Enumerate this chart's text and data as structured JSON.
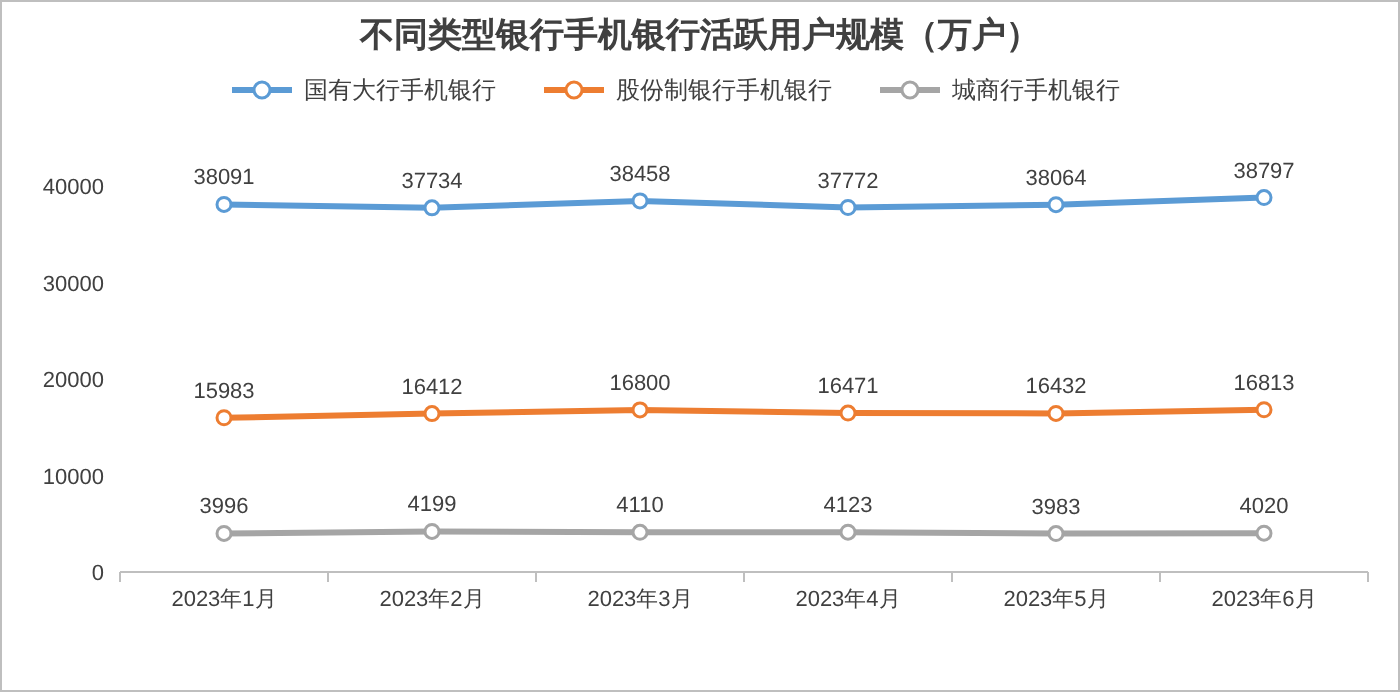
{
  "chart_data": {
    "type": "line",
    "title": "不同类型银行手机银行活跃用户规模（万户）",
    "categories": [
      "2023年1月",
      "2023年2月",
      "2023年3月",
      "2023年4月",
      "2023年5月",
      "2023年6月"
    ],
    "series": [
      {
        "name": "国有大行手机银行",
        "color": "#5b9bd5",
        "values": [
          38091,
          37734,
          38458,
          37772,
          38064,
          38797
        ]
      },
      {
        "name": "股份制银行手机银行",
        "color": "#ed7d31",
        "values": [
          15983,
          16412,
          16800,
          16471,
          16432,
          16813
        ]
      },
      {
        "name": "城商行手机银行",
        "color": "#a5a5a5",
        "values": [
          3996,
          4199,
          4110,
          4123,
          3983,
          4020
        ]
      }
    ],
    "ylim": [
      0,
      40000
    ],
    "yticks": [
      0,
      10000,
      20000,
      30000,
      40000
    ],
    "grid": false,
    "legend": "top",
    "marker": "circle",
    "line_style": "solid",
    "data_labels": true
  }
}
